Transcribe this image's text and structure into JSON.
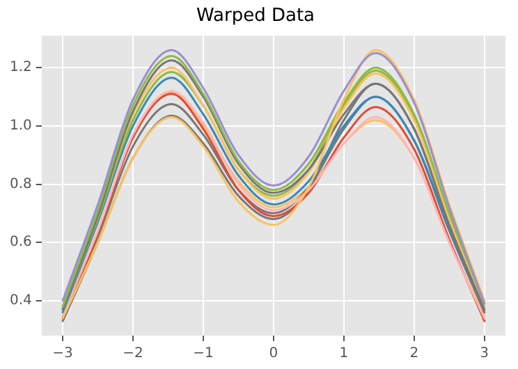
{
  "chart_data": {
    "type": "line",
    "title": "Warped Data",
    "x": [
      -3,
      -2.5,
      -2,
      -1.45,
      -1,
      -0.5,
      0,
      0.5,
      1,
      1.45,
      2,
      2.5,
      3
    ],
    "xlim": [
      -3.3,
      3.3
    ],
    "xticks": [
      {
        "value": -3,
        "label": "−3"
      },
      {
        "value": -2,
        "label": "−2"
      },
      {
        "value": -1,
        "label": "−1"
      },
      0,
      1,
      2,
      3
    ],
    "ylim": [
      0.28,
      1.31
    ],
    "yticks": [
      0.4,
      0.6,
      0.8,
      {
        "value": 1,
        "label": "1.0"
      },
      1.2
    ],
    "grid": true,
    "marker": "none",
    "line_style": "solid",
    "series": [
      {
        "color": "#988ed5",
        "values": [
          0.4,
          0.73,
          1.09,
          1.26,
          1.13,
          0.9,
          0.795,
          0.895,
          1.12,
          1.25,
          1.08,
          0.72,
          0.39
        ]
      },
      {
        "color": "#fbc15e",
        "values": [
          0.34,
          0.6,
          0.89,
          1.03,
          0.93,
          0.74,
          0.66,
          0.79,
          1.09,
          1.26,
          1.09,
          0.73,
          0.4
        ]
      },
      {
        "color": "#8eba42",
        "values": [
          0.38,
          0.71,
          1.07,
          1.24,
          1.11,
          0.88,
          0.78,
          0.87,
          1.08,
          1.2,
          1.04,
          0.7,
          0.39
        ]
      },
      {
        "color": "#777777",
        "values": [
          0.37,
          0.69,
          1.05,
          1.225,
          1.1,
          0.87,
          0.77,
          0.85,
          1.04,
          1.145,
          0.99,
          0.66,
          0.37
        ]
      },
      {
        "color": "#fbc15e",
        "values": [
          0.38,
          0.69,
          1.04,
          1.2,
          1.07,
          0.85,
          0.75,
          0.84,
          1.06,
          1.18,
          1.02,
          0.68,
          0.38
        ]
      },
      {
        "color": "#8eba42",
        "values": [
          0.37,
          0.68,
          1.02,
          1.185,
          1.07,
          0.85,
          0.76,
          0.85,
          1.07,
          1.19,
          1.03,
          0.69,
          0.38
        ]
      },
      {
        "color": "#348abd",
        "values": [
          0.36,
          0.67,
          1.0,
          1.165,
          1.04,
          0.83,
          0.73,
          0.81,
          1.0,
          1.1,
          0.95,
          0.65,
          0.37
        ]
      },
      {
        "color": "#ffb5b8",
        "values": [
          0.35,
          0.64,
          0.97,
          1.12,
          1.01,
          0.8,
          0.71,
          0.78,
          0.94,
          1.03,
          0.89,
          0.6,
          0.34
        ]
      },
      {
        "color": "#e24a33",
        "values": [
          0.34,
          0.63,
          0.96,
          1.11,
          0.99,
          0.78,
          0.69,
          0.77,
          0.96,
          1.065,
          0.92,
          0.61,
          0.33
        ]
      },
      {
        "color": "#777777",
        "values": [
          0.34,
          0.62,
          0.93,
          1.075,
          0.97,
          0.78,
          0.7,
          0.79,
          0.99,
          1.1,
          0.95,
          0.64,
          0.36
        ]
      },
      {
        "color": "#777777",
        "values": [
          0.33,
          0.6,
          0.89,
          1.035,
          0.94,
          0.76,
          0.68,
          0.78,
          1.02,
          1.145,
          0.99,
          0.66,
          0.36
        ]
      },
      {
        "color": "#fbc15e",
        "values": [
          0.35,
          0.64,
          0.96,
          1.115,
          1.0,
          0.81,
          0.72,
          0.79,
          0.94,
          1.02,
          0.89,
          0.6,
          0.35
        ]
      }
    ]
  }
}
